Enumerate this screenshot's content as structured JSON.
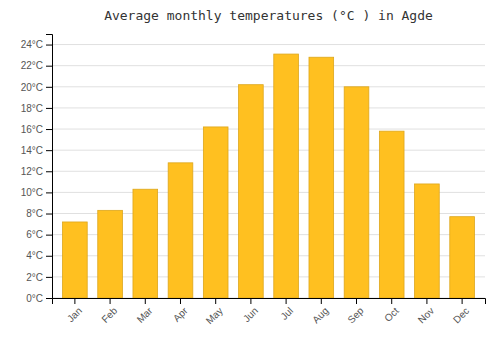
{
  "chart_data": {
    "type": "bar",
    "title": "Average monthly temperatures (°C ) in Agde",
    "categories": [
      "Jan",
      "Feb",
      "Mar",
      "Apr",
      "May",
      "Jun",
      "Jul",
      "Aug",
      "Sep",
      "Oct",
      "Nov",
      "Dec"
    ],
    "values": [
      7.2,
      8.3,
      10.3,
      12.8,
      16.2,
      20.2,
      23.1,
      22.8,
      20.0,
      15.8,
      10.8,
      7.7
    ],
    "color": "#FFC020",
    "ylim": [
      0,
      25
    ],
    "yticks": [
      {
        "value": 0,
        "label": "0°C"
      },
      {
        "value": 2,
        "label": "2°C"
      },
      {
        "value": 4,
        "label": "4°C"
      },
      {
        "value": 6,
        "label": "6°C"
      },
      {
        "value": 8,
        "label": "8°C"
      },
      {
        "value": 10,
        "label": "10°C"
      },
      {
        "value": 12,
        "label": "12°C"
      },
      {
        "value": 14,
        "label": "14°C"
      },
      {
        "value": 16,
        "label": "16°C"
      },
      {
        "value": 18,
        "label": "18°C"
      },
      {
        "value": 20,
        "label": "20°C"
      },
      {
        "value": 22,
        "label": "22°C"
      },
      {
        "value": 24,
        "label": "24°C"
      }
    ],
    "grid": true
  }
}
